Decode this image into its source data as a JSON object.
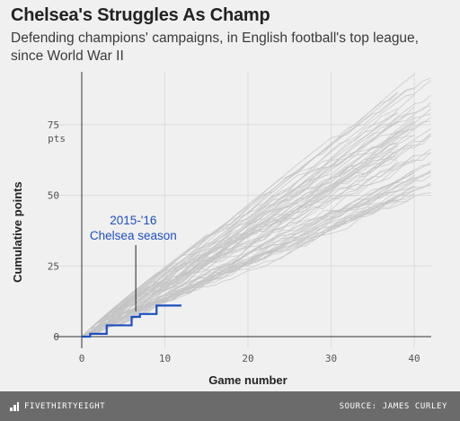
{
  "header": {
    "title": "Chelsea's Struggles As Champ",
    "subtitle": "Defending champions' campaigns, in English football's top league, since World War II"
  },
  "footer": {
    "brand": "FIVETHIRTYEIGHT",
    "source": "SOURCE: JAMES CURLEY"
  },
  "colors": {
    "background": "#f0f0f0",
    "grid": "#dcdcdc",
    "history_lines": "#c4c4c4",
    "highlight": "#1f4fbf",
    "axis_text": "#555555",
    "footer_bg": "#6b6b6b"
  },
  "chart_data": {
    "type": "line",
    "title": "Chelsea's Struggles As Champ",
    "subtitle": "Defending champions' campaigns, in English football's top league, since World War II",
    "xlabel": "Game number",
    "ylabel": "Cumulative points",
    "xlim": [
      -1,
      44
    ],
    "ylim": [
      -2,
      92
    ],
    "xticks": [
      0,
      10,
      20,
      30,
      40
    ],
    "yticks": [
      0,
      25,
      50,
      75
    ],
    "ytick_unit": "pts",
    "grid": true,
    "highlight_series": {
      "name": "2015-'16 Chelsea season",
      "x": [
        0,
        1,
        2,
        3,
        4,
        5,
        6,
        7,
        8,
        9,
        10,
        11,
        12
      ],
      "y": [
        0,
        1,
        1,
        4,
        4,
        4,
        7,
        8,
        8,
        11,
        11,
        11,
        11
      ]
    },
    "annotation": {
      "lines": [
        "2015-'16",
        "Chelsea season"
      ],
      "points_to": {
        "x": 6.5,
        "y": 8
      }
    },
    "historical_series_summary": {
      "count": 70,
      "games_per_season": [
        38,
        40,
        42
      ],
      "final_points_range": [
        47,
        92
      ]
    }
  }
}
